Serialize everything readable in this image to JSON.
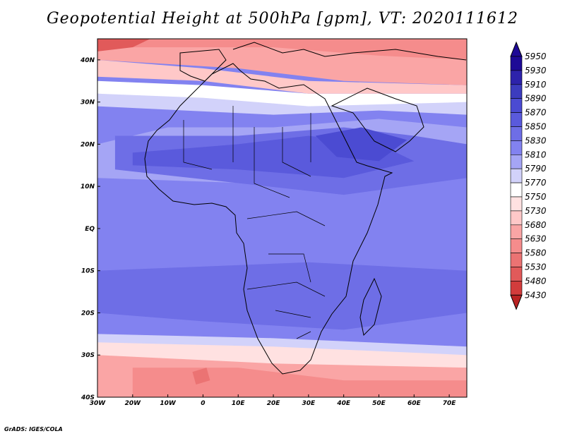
{
  "title": "Geopotential Height at 500hPa [gpm], VT: 2020111612",
  "footer": "GrADS: IGES/COLA",
  "chart_data": {
    "type": "heatmap",
    "title": "Geopotential Height at 500hPa [gpm], VT: 2020111612",
    "variable": "Geopotential Height at 500hPa",
    "units": "gpm",
    "valid_time": "2020111612",
    "x_range": [
      -30,
      75
    ],
    "y_range": [
      -40,
      45
    ],
    "x_ticks": [
      {
        "value": -30,
        "label": "30W"
      },
      {
        "value": -20,
        "label": "20W"
      },
      {
        "value": -10,
        "label": "10W"
      },
      {
        "value": 0,
        "label": "0"
      },
      {
        "value": 10,
        "label": "10E"
      },
      {
        "value": 20,
        "label": "20E"
      },
      {
        "value": 30,
        "label": "30E"
      },
      {
        "value": 40,
        "label": "40E"
      },
      {
        "value": 50,
        "label": "50E"
      },
      {
        "value": 60,
        "label": "60E"
      },
      {
        "value": 70,
        "label": "70E"
      }
    ],
    "y_ticks": [
      {
        "value": 40,
        "label": "40N"
      },
      {
        "value": 30,
        "label": "30N"
      },
      {
        "value": 20,
        "label": "20N"
      },
      {
        "value": 10,
        "label": "10N"
      },
      {
        "value": 0,
        "label": "EQ"
      },
      {
        "value": -10,
        "label": "10S"
      },
      {
        "value": -20,
        "label": "20S"
      },
      {
        "value": -30,
        "label": "30S"
      },
      {
        "value": -40,
        "label": "40S"
      }
    ],
    "colorbar": [
      {
        "value": 5950,
        "color": "#1e0a96"
      },
      {
        "value": 5930,
        "color": "#2d23ab"
      },
      {
        "value": 5910,
        "color": "#3c3cbe"
      },
      {
        "value": 5890,
        "color": "#4b4bd2"
      },
      {
        "value": 5870,
        "color": "#5a5adc"
      },
      {
        "value": 5850,
        "color": "#6e6ee6"
      },
      {
        "value": 5830,
        "color": "#8282f0"
      },
      {
        "value": 5810,
        "color": "#a5a5f5"
      },
      {
        "value": 5790,
        "color": "#d2d2fa"
      },
      {
        "value": 5770,
        "color": "#ffffff"
      },
      {
        "value": 5750,
        "color": "#ffe1e1"
      },
      {
        "value": 5730,
        "color": "#ffc8c8"
      },
      {
        "value": 5680,
        "color": "#faa5a5"
      },
      {
        "value": 5630,
        "color": "#f58c8c"
      },
      {
        "value": 5580,
        "color": "#eb7373"
      },
      {
        "value": 5530,
        "color": "#e15a5a"
      },
      {
        "value": 5480,
        "color": "#d23c3c"
      },
      {
        "value": 5430,
        "color": "#b92323"
      }
    ]
  }
}
